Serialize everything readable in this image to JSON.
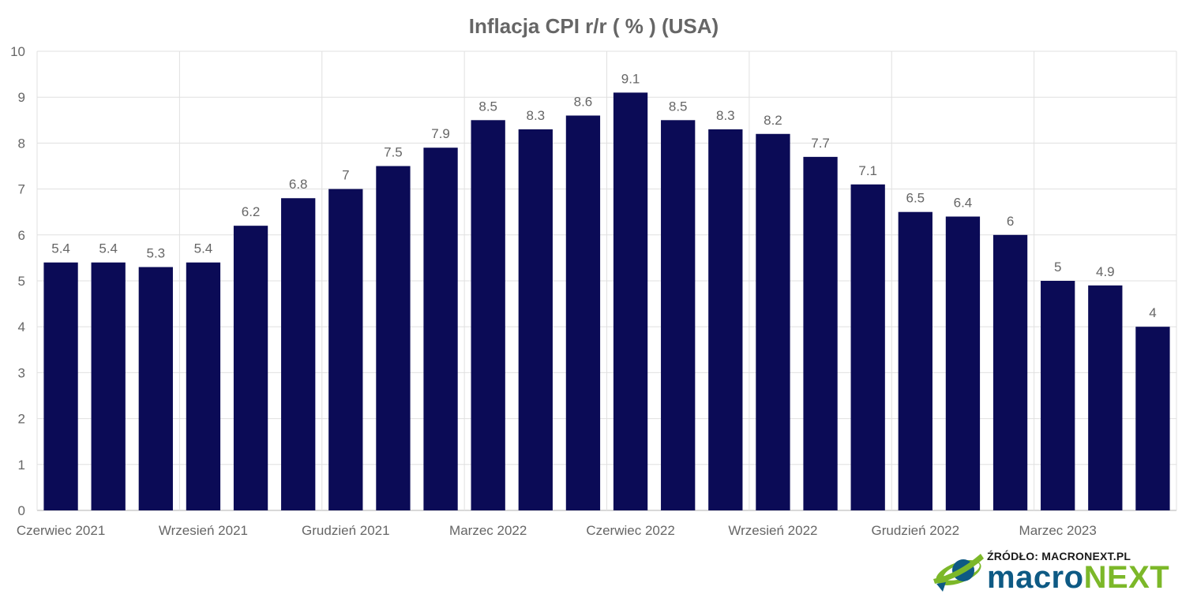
{
  "chart_data": {
    "type": "bar",
    "title": "Inflacja CPI r/r ( % ) (USA)",
    "xlabel": "",
    "ylabel": "",
    "ylim": [
      0,
      10
    ],
    "yticks": [
      "0",
      "1",
      "2",
      "3",
      "4",
      "5",
      "6",
      "7",
      "8",
      "9",
      "10"
    ],
    "x_tick_labels": [
      "Czerwiec 2021",
      "Wrzesień 2021",
      "Grudzień 2021",
      "Marzec 2022",
      "Czerwiec 2022",
      "Wrzesień 2022",
      "Grudzień 2022",
      "Marzec 2023"
    ],
    "categories": [
      "",
      "",
      "",
      "",
      "",
      "",
      "",
      "",
      "",
      "",
      "",
      "",
      "",
      "",
      "",
      "",
      "",
      "",
      "",
      "",
      "",
      "",
      "",
      ""
    ],
    "values": [
      5.4,
      5.4,
      5.3,
      5.4,
      6.2,
      6.8,
      7,
      7.5,
      7.9,
      8.5,
      8.3,
      8.6,
      9.1,
      8.5,
      8.3,
      8.2,
      7.7,
      7.1,
      6.5,
      6.4,
      6,
      5,
      4.9,
      4
    ],
    "data_labels": [
      "5.4",
      "5.4",
      "5.3",
      "5.4",
      "6.2",
      "6.8",
      "7",
      "7.5",
      "7.9",
      "8.5",
      "8.3",
      "8.6",
      "9.1",
      "8.5",
      "8.3",
      "8.2",
      "7.7",
      "7.1",
      "6.5",
      "6.4",
      "6",
      "5",
      "4.9",
      "4"
    ],
    "grid": true,
    "legend": "none",
    "colors": {
      "bar": "#0b0b56",
      "grid": "#e0e0e0",
      "text": "#666666"
    }
  },
  "source": {
    "label": "ŹRÓDŁO: MACRONEXT.PL",
    "brand_part1": "macro",
    "brand_part2": "NEXT",
    "logo_icon": "globe-swoosh-icon",
    "colors": {
      "blue": "#0e5a84",
      "green": "#7cb829"
    }
  }
}
